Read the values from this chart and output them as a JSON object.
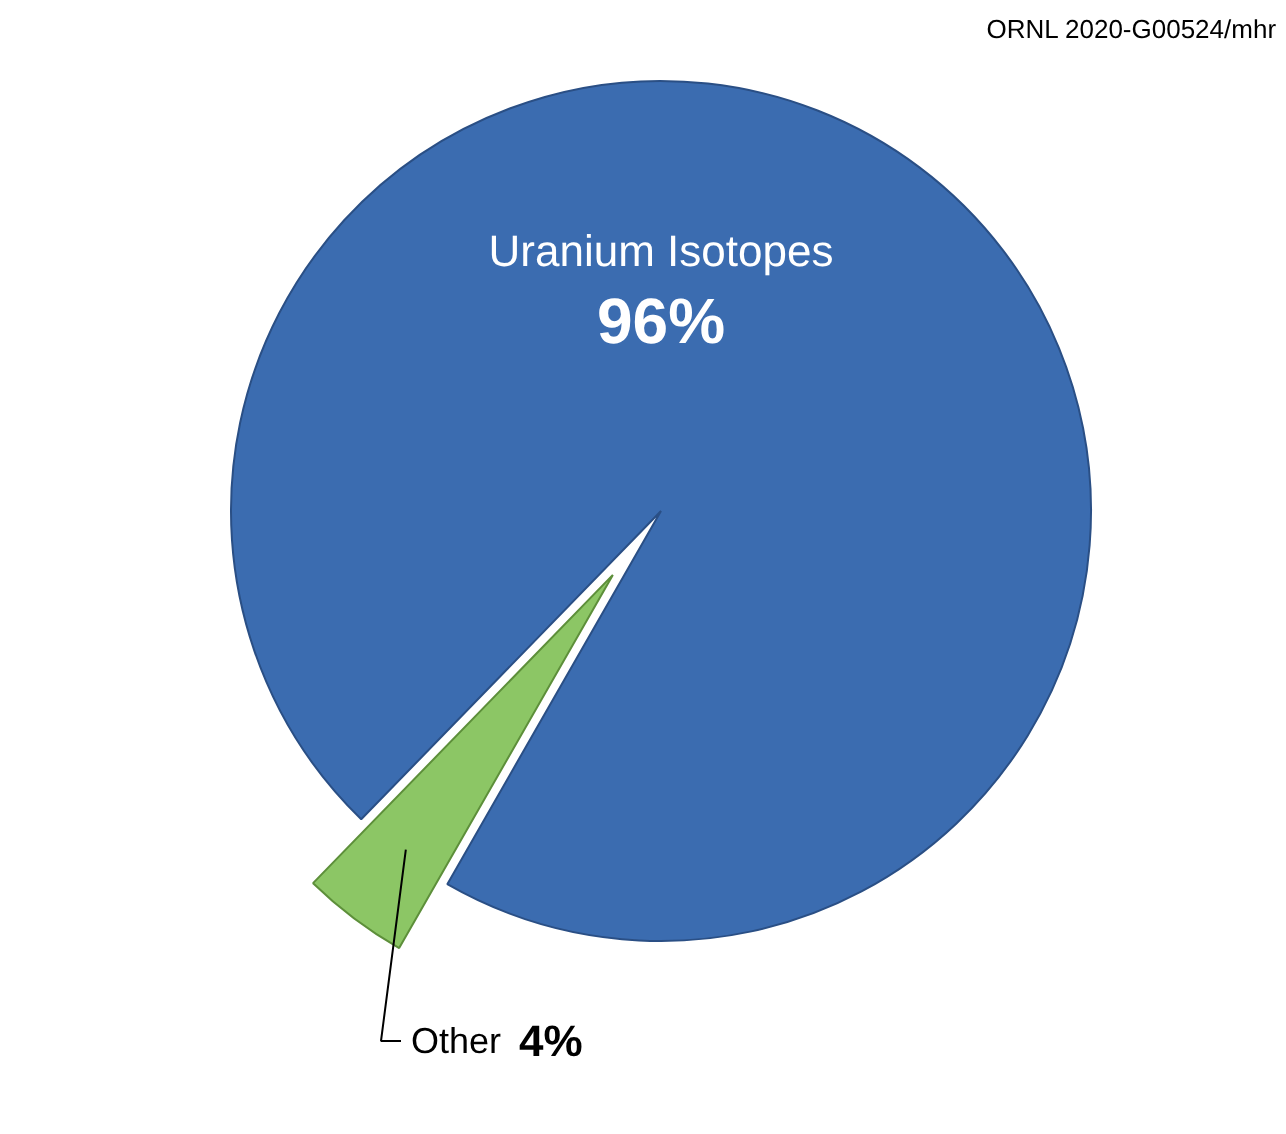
{
  "chart_data": {
    "type": "pie",
    "categories": [
      "Uranium Isotopes",
      "Other"
    ],
    "values": [
      96,
      4
    ],
    "value_labels": [
      "96%",
      "4%"
    ],
    "colors": [
      "#3b6cb0",
      "#8cc665"
    ],
    "annotations": [
      "ORNL 2020-G00524/mhr"
    ]
  }
}
